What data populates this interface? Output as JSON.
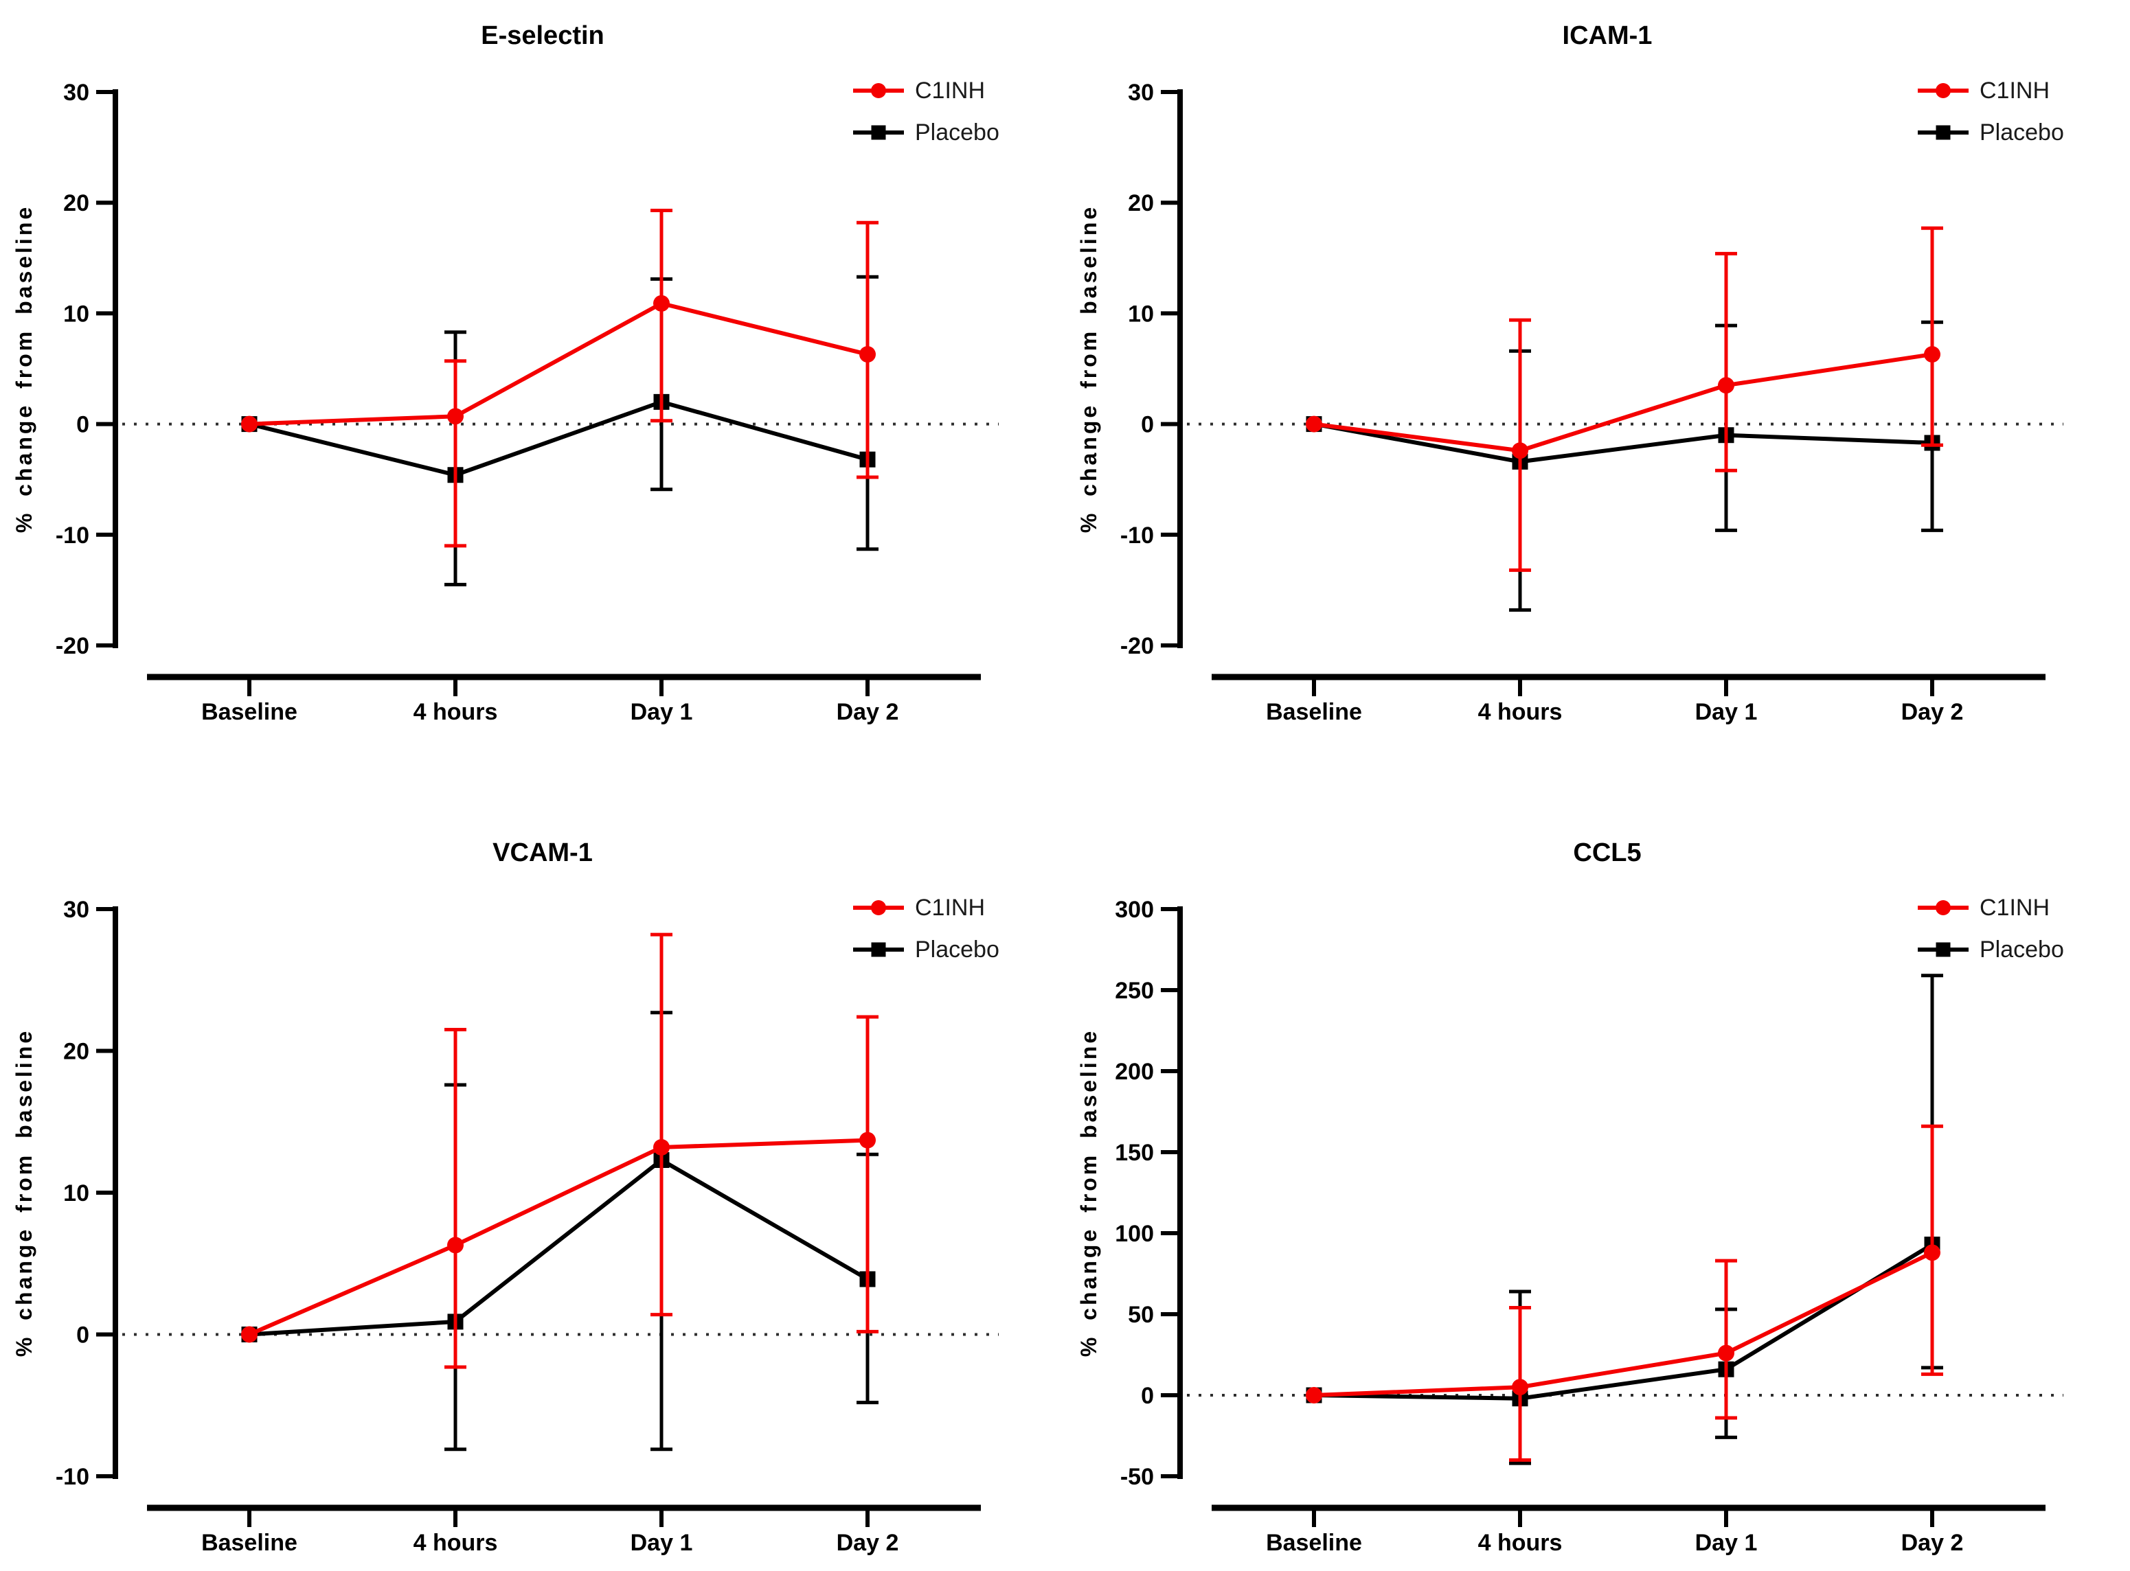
{
  "figure": {
    "background": "#ffffff",
    "y_axis_title": "% change from baseline",
    "categories": [
      "Baseline",
      "4 hours",
      "Day 1",
      "Day 2"
    ],
    "colors": {
      "c1inh_red": "#f40000",
      "placebo_black": "#000000",
      "zero_line_gray": "#2e2e2e"
    },
    "legend": {
      "items": [
        {
          "label": "C1INH",
          "color": "#f40000",
          "marker": "circle"
        },
        {
          "label": "Placebo",
          "color": "#000000",
          "marker": "square"
        }
      ]
    }
  },
  "chart_data": [
    {
      "type": "line",
      "title": "E-selectin",
      "ylabel": "% change from baseline",
      "xlabel": "",
      "categories": [
        "Baseline",
        "4 hours",
        "Day 1",
        "Day 2"
      ],
      "ylim": [
        -20,
        30
      ],
      "yticks": [
        -20,
        -10,
        0,
        10,
        20,
        30
      ],
      "zero_line": true,
      "grid": false,
      "legend_position": "top-right",
      "series": [
        {
          "name": "C1INH",
          "color": "#f40000",
          "marker": "circle",
          "values": [
            0,
            0.7,
            10.9,
            6.3
          ],
          "err_lo": [
            0,
            -11.0,
            0.3,
            -4.8
          ],
          "err_hi": [
            0,
            5.7,
            19.3,
            18.2
          ]
        },
        {
          "name": "Placebo",
          "color": "#000000",
          "marker": "square",
          "values": [
            0,
            -4.6,
            2.0,
            -3.2
          ],
          "err_lo": [
            0,
            -14.5,
            -5.9,
            -11.3
          ],
          "err_hi": [
            0,
            8.3,
            13.1,
            13.3
          ]
        }
      ]
    },
    {
      "type": "line",
      "title": "ICAM-1",
      "ylabel": "% change from baseline",
      "xlabel": "",
      "categories": [
        "Baseline",
        "4 hours",
        "Day 1",
        "Day 2"
      ],
      "ylim": [
        -20,
        30
      ],
      "yticks": [
        -20,
        -10,
        0,
        10,
        20,
        30
      ],
      "zero_line": true,
      "grid": false,
      "legend_position": "top-right",
      "series": [
        {
          "name": "C1INH",
          "color": "#f40000",
          "marker": "circle",
          "values": [
            0,
            -2.4,
            3.5,
            6.3
          ],
          "err_lo": [
            0,
            -13.2,
            -4.2,
            -1.9
          ],
          "err_hi": [
            0,
            9.4,
            15.4,
            17.7
          ]
        },
        {
          "name": "Placebo",
          "color": "#000000",
          "marker": "square",
          "values": [
            0,
            -3.4,
            -1.0,
            -1.7
          ],
          "err_lo": [
            0,
            -16.8,
            -9.6,
            -9.6
          ],
          "err_hi": [
            0,
            6.6,
            8.9,
            9.2
          ]
        }
      ]
    },
    {
      "type": "line",
      "title": "VCAM-1",
      "ylabel": "% change from baseline",
      "xlabel": "",
      "categories": [
        "Baseline",
        "4 hours",
        "Day 1",
        "Day 2"
      ],
      "ylim": [
        -10,
        30
      ],
      "yticks": [
        -10,
        0,
        10,
        20,
        30
      ],
      "zero_line": true,
      "grid": false,
      "legend_position": "top-right",
      "series": [
        {
          "name": "C1INH",
          "color": "#f40000",
          "marker": "circle",
          "values": [
            0,
            6.3,
            13.2,
            13.7
          ],
          "err_lo": [
            0,
            -2.3,
            1.4,
            0.2
          ],
          "err_hi": [
            0,
            21.5,
            28.2,
            22.4
          ]
        },
        {
          "name": "Placebo",
          "color": "#000000",
          "marker": "square",
          "values": [
            0,
            0.9,
            12.3,
            3.9
          ],
          "err_lo": [
            0,
            -8.1,
            -8.1,
            -4.8
          ],
          "err_hi": [
            0,
            17.6,
            22.7,
            12.7
          ]
        }
      ]
    },
    {
      "type": "line",
      "title": "CCL5",
      "ylabel": "% change from baseline",
      "xlabel": "",
      "categories": [
        "Baseline",
        "4 hours",
        "Day 1",
        "Day 2"
      ],
      "ylim": [
        -50,
        300
      ],
      "yticks": [
        -50,
        0,
        50,
        100,
        150,
        200,
        250,
        300
      ],
      "zero_line": true,
      "grid": false,
      "legend_position": "top-right",
      "series": [
        {
          "name": "C1INH",
          "color": "#f40000",
          "marker": "circle",
          "values": [
            0,
            5,
            26,
            88
          ],
          "err_lo": [
            0,
            -40,
            -14,
            13
          ],
          "err_hi": [
            0,
            54,
            83,
            166
          ]
        },
        {
          "name": "Placebo",
          "color": "#000000",
          "marker": "square",
          "values": [
            0,
            -2,
            16,
            93
          ],
          "err_lo": [
            0,
            -42,
            -26,
            17
          ],
          "err_hi": [
            0,
            64,
            53,
            259
          ]
        }
      ]
    }
  ]
}
